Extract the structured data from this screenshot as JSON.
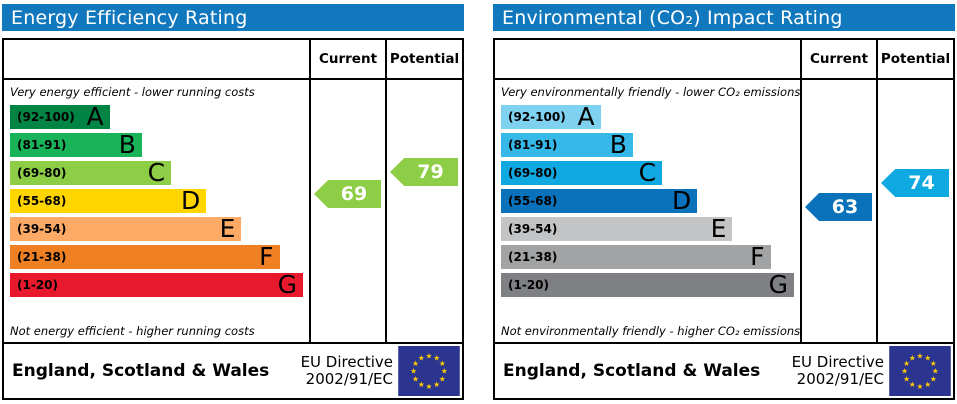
{
  "chart_data": [
    {
      "type": "rating-scale-bar",
      "title": "Energy Efficiency Rating",
      "top_note": "Very energy efficient - lower running costs",
      "bottom_note": "Not energy efficient - higher running costs",
      "categories": [
        "A",
        "B",
        "C",
        "D",
        "E",
        "F",
        "G"
      ],
      "ranges": [
        "(92-100)",
        "(81-91)",
        "(69-80)",
        "(55-68)",
        "(39-54)",
        "(21-38)",
        "(1-20)"
      ],
      "band_bounds": [
        [
          92,
          100
        ],
        [
          81,
          91
        ],
        [
          69,
          80
        ],
        [
          55,
          68
        ],
        [
          39,
          54
        ],
        [
          21,
          38
        ],
        [
          1,
          20
        ]
      ],
      "band_colors": [
        "#008444",
        "#19b459",
        "#8dce46",
        "#ffd500",
        "#fcaa65",
        "#ef8023",
        "#e8192c"
      ],
      "band_width_pct": [
        34,
        45,
        55,
        67,
        79,
        92,
        100
      ],
      "current": {
        "label": "Current",
        "value": 69,
        "band": "C",
        "color": "#8dce46"
      },
      "potential": {
        "label": "Potential",
        "value": 79,
        "band": "C",
        "color": "#8dce46"
      },
      "footer": {
        "region": "England, Scotland & Wales",
        "directive_line1": "EU Directive",
        "directive_line2": "2002/91/EC"
      }
    },
    {
      "type": "rating-scale-bar",
      "title": "Environmental (CO₂) Impact Rating",
      "top_note": "Very environmentally friendly - lower CO₂ emissions",
      "bottom_note": "Not environmentally friendly - higher CO₂ emissions",
      "categories": [
        "A",
        "B",
        "C",
        "D",
        "E",
        "F",
        "G"
      ],
      "ranges": [
        "(92-100)",
        "(81-91)",
        "(69-80)",
        "(55-68)",
        "(39-54)",
        "(21-38)",
        "(1-20)"
      ],
      "band_bounds": [
        [
          92,
          100
        ],
        [
          81,
          91
        ],
        [
          69,
          80
        ],
        [
          55,
          68
        ],
        [
          39,
          54
        ],
        [
          21,
          38
        ],
        [
          1,
          20
        ]
      ],
      "band_colors": [
        "#7fd1f0",
        "#36b9e9",
        "#0fa8e0",
        "#0a72ba",
        "#c3c4c6",
        "#a2a3a5",
        "#7e8083"
      ],
      "band_width_pct": [
        34,
        45,
        55,
        67,
        79,
        92,
        100
      ],
      "current": {
        "label": "Current",
        "value": 63,
        "band": "D",
        "color": "#0a72ba"
      },
      "potential": {
        "label": "Potential",
        "value": 74,
        "band": "C",
        "color": "#0fa8e0"
      },
      "footer": {
        "region": "England, Scotland & Wales",
        "directive_line1": "EU Directive",
        "directive_line2": "2002/91/EC"
      }
    }
  ],
  "eu_flag": {
    "background": "#2b3590",
    "star_color": "#ffcc00",
    "star_glyph": "★"
  }
}
